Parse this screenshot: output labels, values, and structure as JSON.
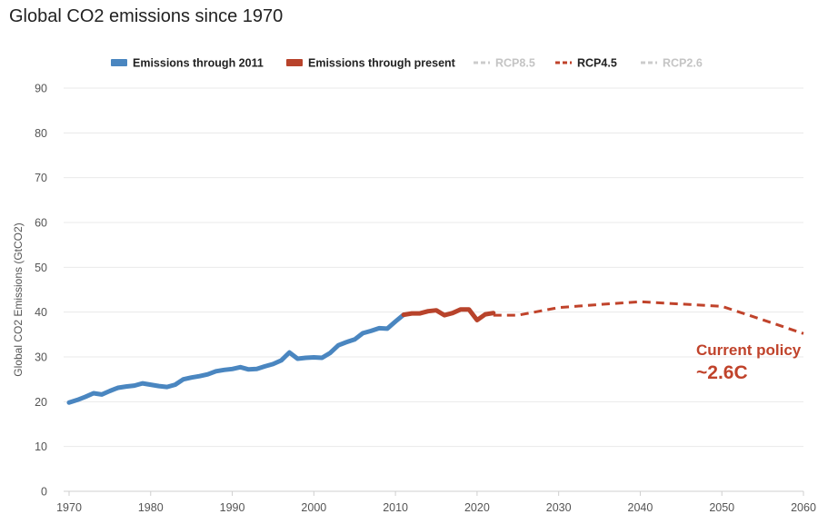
{
  "chart_data": {
    "type": "line",
    "title": "Global CO2 emissions since 1970",
    "ylabel": "Global CO2 Emissions (GtCO2)",
    "xlabel": "",
    "xlim": [
      1970,
      2060
    ],
    "ylim": [
      0,
      90
    ],
    "x_ticks": [
      "1970",
      "1980",
      "1990",
      "2000",
      "2010",
      "2020",
      "2030",
      "2040",
      "2050",
      "2060"
    ],
    "y_ticks": [
      "0",
      "10",
      "20",
      "30",
      "40",
      "50",
      "60",
      "70",
      "80",
      "90"
    ],
    "grid": true,
    "legend_position": "top",
    "legend": [
      {
        "name": "Emissions through 2011",
        "style": "solid",
        "color": "#4a86c0",
        "active": true
      },
      {
        "name": "Emissions through present",
        "style": "solid",
        "color": "#b8432b",
        "active": true
      },
      {
        "name": "RCP8.5",
        "style": "dashed",
        "color": "#cccccc",
        "active": false
      },
      {
        "name": "RCP4.5",
        "style": "dashed",
        "color": "#c0432b",
        "active": true
      },
      {
        "name": "RCP2.6",
        "style": "dashed",
        "color": "#cccccc",
        "active": false
      }
    ],
    "series": [
      {
        "name": "Emissions through 2011",
        "style": "solid",
        "color": "#4a86c0",
        "x": [
          1970,
          1971,
          1972,
          1973,
          1974,
          1975,
          1976,
          1977,
          1978,
          1979,
          1980,
          1981,
          1982,
          1983,
          1984,
          1985,
          1986,
          1987,
          1988,
          1989,
          1990,
          1991,
          1992,
          1993,
          1994,
          1995,
          1996,
          1997,
          1998,
          1999,
          2000,
          2001,
          2002,
          2003,
          2004,
          2005,
          2006,
          2007,
          2008,
          2009,
          2010,
          2011
        ],
        "y": [
          19.8,
          20.4,
          21.1,
          21.9,
          21.6,
          22.4,
          23.1,
          23.4,
          23.6,
          24.1,
          23.8,
          23.5,
          23.3,
          23.8,
          25.0,
          25.4,
          25.7,
          26.1,
          26.8,
          27.1,
          27.3,
          27.7,
          27.2,
          27.3,
          27.9,
          28.4,
          29.2,
          31.0,
          29.6,
          29.8,
          29.9,
          29.8,
          30.9,
          32.6,
          33.3,
          33.9,
          35.3,
          35.8,
          36.4,
          36.3,
          37.9,
          39.4
        ]
      },
      {
        "name": "Emissions through present",
        "style": "solid",
        "color": "#b8432b",
        "x": [
          2011,
          2012,
          2013,
          2014,
          2015,
          2016,
          2017,
          2018,
          2019,
          2020,
          2021,
          2022
        ],
        "y": [
          39.4,
          39.7,
          39.7,
          40.2,
          40.4,
          39.3,
          39.8,
          40.6,
          40.6,
          38.2,
          39.5,
          39.8
        ]
      },
      {
        "name": "RCP4.5",
        "style": "dashed",
        "color": "#c0432b",
        "x": [
          2022,
          2025,
          2030,
          2035,
          2040,
          2045,
          2050,
          2055,
          2060
        ],
        "y": [
          39.3,
          39.3,
          41.0,
          41.7,
          42.3,
          41.8,
          41.3,
          38.3,
          35.2
        ]
      }
    ],
    "annotations": [
      {
        "line1": "Current policy",
        "line2": "~2.6C",
        "color": "#c0432b"
      }
    ]
  }
}
